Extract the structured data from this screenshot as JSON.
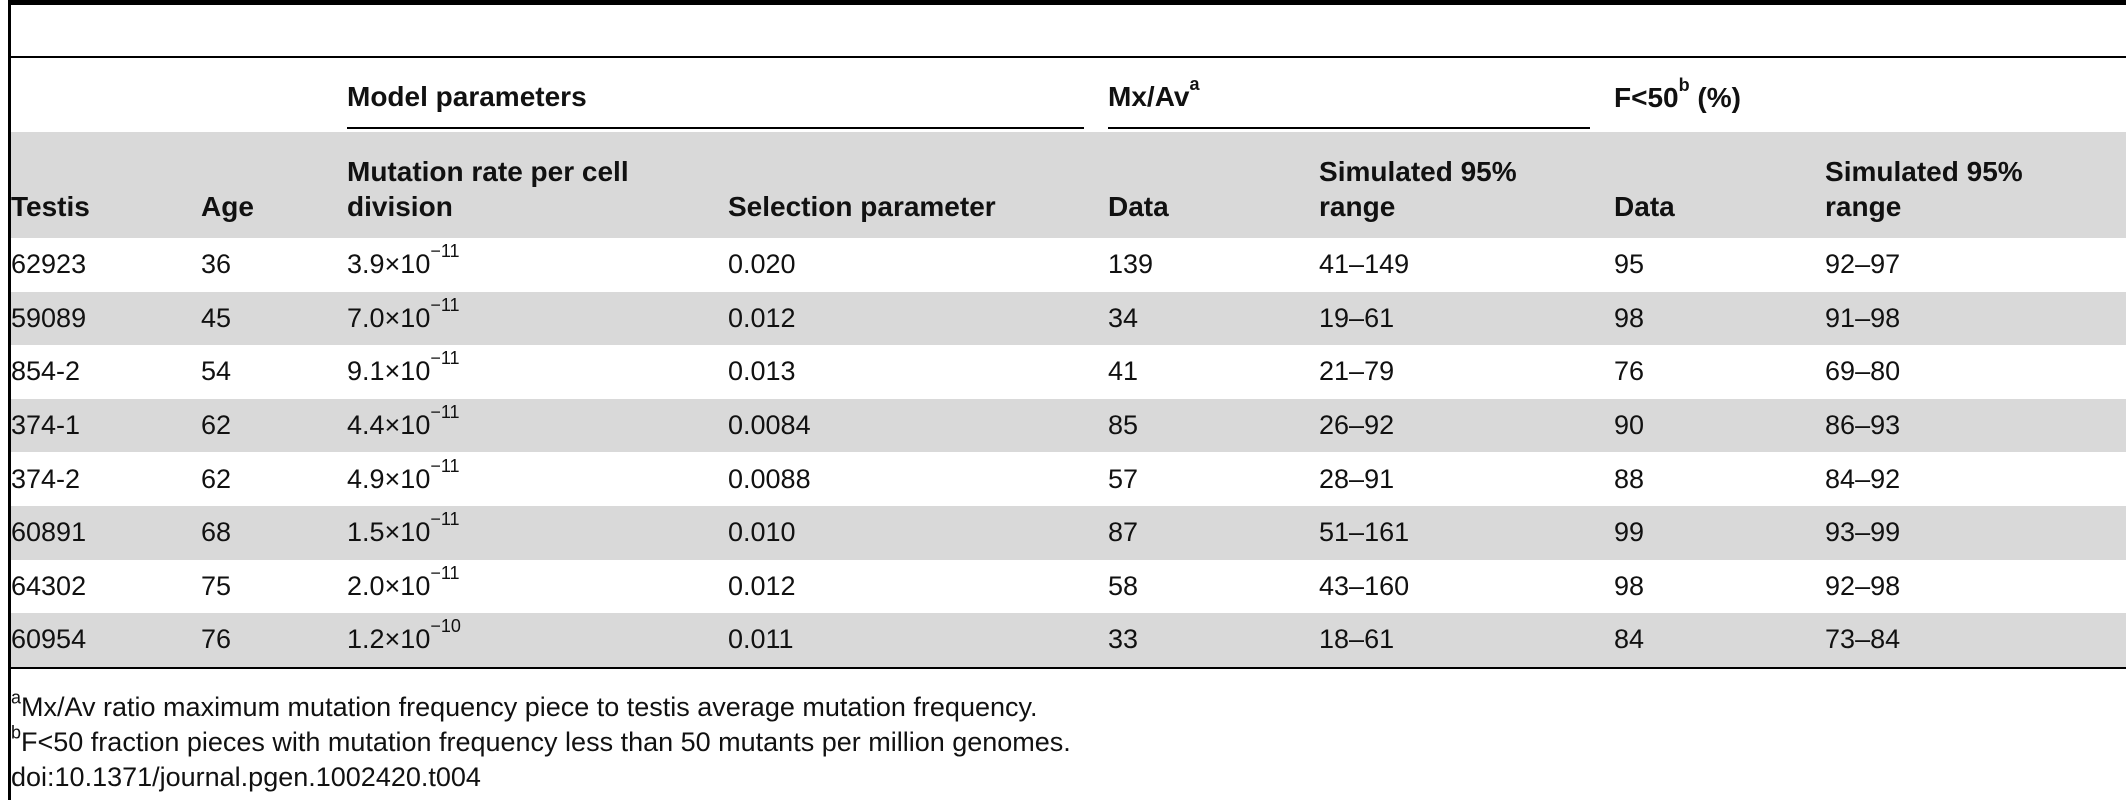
{
  "table": {
    "group_headers": {
      "model": "Model parameters",
      "mxav": "Mx/Av",
      "mxav_sup": "a",
      "f50_pre": "F<50",
      "f50_sup": "b",
      "f50_post": " (%)"
    },
    "columns": {
      "testis": "Testis",
      "age": "Age",
      "mutation_rate": "Mutation rate per cell division",
      "selection": "Selection parameter",
      "mx_data": "Data",
      "mx_range": "Simulated 95% range",
      "f_data": "Data",
      "f_range": "Simulated 95% range"
    },
    "rows": [
      {
        "testis": "62923",
        "age": "36",
        "mut_base": "3.9×10",
        "mut_exp": "−11",
        "selection": "0.020",
        "mx_data": "139",
        "mx_range": "41–149",
        "f_data": "95",
        "f_range": "92–97"
      },
      {
        "testis": "59089",
        "age": "45",
        "mut_base": "7.0×10",
        "mut_exp": "−11",
        "selection": "0.012",
        "mx_data": "34",
        "mx_range": "19–61",
        "f_data": "98",
        "f_range": "91–98"
      },
      {
        "testis": "854-2",
        "age": "54",
        "mut_base": "9.1×10",
        "mut_exp": "−11",
        "selection": "0.013",
        "mx_data": "41",
        "mx_range": "21–79",
        "f_data": "76",
        "f_range": "69–80"
      },
      {
        "testis": "374-1",
        "age": "62",
        "mut_base": "4.4×10",
        "mut_exp": "−11",
        "selection": "0.0084",
        "mx_data": "85",
        "mx_range": "26–92",
        "f_data": "90",
        "f_range": "86–93"
      },
      {
        "testis": "374-2",
        "age": "62",
        "mut_base": "4.9×10",
        "mut_exp": "−11",
        "selection": "0.0088",
        "mx_data": "57",
        "mx_range": "28–91",
        "f_data": "88",
        "f_range": "84–92"
      },
      {
        "testis": "60891",
        "age": "68",
        "mut_base": "1.5×10",
        "mut_exp": "−11",
        "selection": "0.010",
        "mx_data": "87",
        "mx_range": "51–161",
        "f_data": "99",
        "f_range": "93–99"
      },
      {
        "testis": "64302",
        "age": "75",
        "mut_base": "2.0×10",
        "mut_exp": "−11",
        "selection": "0.012",
        "mx_data": "58",
        "mx_range": "43–160",
        "f_data": "98",
        "f_range": "92–98"
      },
      {
        "testis": "60954",
        "age": "76",
        "mut_base": "1.2×10",
        "mut_exp": "−10",
        "selection": "0.011",
        "mx_data": "33",
        "mx_range": "18–61",
        "f_data": "84",
        "f_range": "73–84"
      }
    ]
  },
  "footnotes": {
    "a_sup": "a",
    "a_text": "Mx/Av ratio maximum mutation frequency piece to testis average mutation frequency.",
    "b_sup": "b",
    "b_text": "F<50 fraction pieces with mutation frequency less than 50 mutants per million genomes.",
    "doi": "doi:10.1371/journal.pgen.1002420.t004"
  }
}
